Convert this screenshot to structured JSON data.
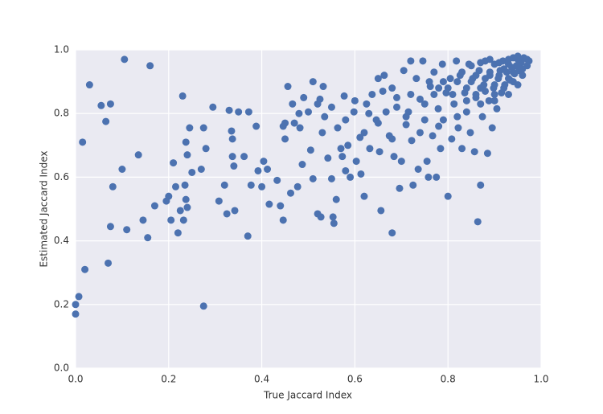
{
  "chart_data": {
    "type": "scatter",
    "xlabel": "True Jaccard Index",
    "ylabel": "Estimated Jaccard Index",
    "color": "#4c72b0",
    "grid": true,
    "xlim": [
      0,
      1
    ],
    "ylim": [
      0,
      1
    ],
    "xticks": [
      {
        "value": 0,
        "label": "0.0"
      },
      0.2,
      0.4,
      0.6,
      0.8,
      {
        "value": 1,
        "label": "1.0"
      }
    ],
    "yticks": [
      {
        "value": 0,
        "label": "0.0"
      },
      0.2,
      0.4,
      0.6,
      0.8,
      {
        "value": 1,
        "label": "1.0"
      }
    ],
    "x": [
      0.0,
      0.0,
      0.007,
      0.015,
      0.02,
      0.03,
      0.055,
      0.065,
      0.075,
      0.07,
      0.075,
      0.08,
      0.105,
      0.1,
      0.11,
      0.135,
      0.145,
      0.16,
      0.155,
      0.17,
      0.195,
      0.2,
      0.205,
      0.21,
      0.215,
      0.22,
      0.225,
      0.23,
      0.235,
      0.232,
      0.237,
      0.237,
      0.245,
      0.24,
      0.24,
      0.25,
      0.27,
      0.275,
      0.275,
      0.28,
      0.295,
      0.308,
      0.32,
      0.325,
      0.33,
      0.335,
      0.337,
      0.337,
      0.34,
      0.342,
      0.35,
      0.362,
      0.37,
      0.372,
      0.377,
      0.388,
      0.392,
      0.4,
      0.404,
      0.412,
      0.416,
      0.433,
      0.44,
      0.446,
      0.446,
      0.45,
      0.456,
      0.462,
      0.466,
      0.47,
      0.477,
      0.482,
      0.487,
      0.49,
      0.5,
      0.505,
      0.51,
      0.51,
      0.52,
      0.525,
      0.527,
      0.532,
      0.535,
      0.542,
      0.55,
      0.553,
      0.555,
      0.56,
      0.563,
      0.573,
      0.577,
      0.58,
      0.585,
      0.59,
      0.598,
      0.603,
      0.611,
      0.613,
      0.62,
      0.625,
      0.632,
      0.637,
      0.646,
      0.65,
      0.653,
      0.656,
      0.663,
      0.667,
      0.674,
      0.68,
      0.68,
      0.684,
      0.69,
      0.696,
      0.7,
      0.705,
      0.71,
      0.715,
      0.72,
      0.722,
      0.725,
      0.732,
      0.736,
      0.74,
      0.746,
      0.75,
      0.755,
      0.758,
      0.762,
      0.767,
      0.77,
      0.775,
      0.779,
      0.784,
      0.788,
      0.79,
      0.796,
      0.8,
      0.805,
      0.808,
      0.813,
      0.818,
      0.822,
      0.826,
      0.83,
      0.836,
      0.84,
      0.845,
      0.848,
      0.853,
      0.857,
      0.86,
      0.864,
      0.867,
      0.87,
      0.874,
      0.877,
      0.88,
      0.885,
      0.888,
      0.89,
      0.895,
      0.898,
      0.9,
      0.905,
      0.908,
      0.912,
      0.915,
      0.918,
      0.922,
      0.926,
      0.93,
      0.933,
      0.937,
      0.94,
      0.943,
      0.947,
      0.95,
      0.953,
      0.957,
      0.963,
      0.974,
      0.85,
      0.86,
      0.87,
      0.88,
      0.89,
      0.9,
      0.91,
      0.92,
      0.93,
      0.94,
      0.95,
      0.96,
      0.84,
      0.86,
      0.88,
      0.9,
      0.92,
      0.94,
      0.96,
      0.82,
      0.83,
      0.85,
      0.87,
      0.89,
      0.91,
      0.93,
      0.95,
      0.97,
      0.8,
      0.81,
      0.79,
      0.78,
      0.77,
      0.76,
      0.84,
      0.87,
      0.9,
      0.93,
      0.95,
      0.97,
      0.6,
      0.63,
      0.66,
      0.69,
      0.72,
      0.75,
      0.62,
      0.65,
      0.68,
      0.71,
      0.74,
      0.78,
      0.82,
      0.55,
      0.58,
      0.52,
      0.48,
      0.53,
      0.57,
      0.45
    ],
    "values": [
      0.17,
      0.2,
      0.225,
      0.71,
      0.31,
      0.89,
      0.825,
      0.775,
      0.83,
      0.33,
      0.445,
      0.57,
      0.97,
      0.625,
      0.435,
      0.67,
      0.465,
      0.95,
      0.41,
      0.51,
      0.525,
      0.54,
      0.465,
      0.645,
      0.57,
      0.425,
      0.495,
      0.855,
      0.575,
      0.465,
      0.53,
      0.71,
      0.755,
      0.67,
      0.505,
      0.615,
      0.625,
      0.755,
      0.195,
      0.69,
      0.82,
      0.525,
      0.575,
      0.485,
      0.81,
      0.745,
      0.72,
      0.665,
      0.635,
      0.495,
      0.805,
      0.665,
      0.415,
      0.805,
      0.575,
      0.76,
      0.62,
      0.57,
      0.65,
      0.625,
      0.515,
      0.59,
      0.51,
      0.465,
      0.76,
      0.72,
      0.885,
      0.55,
      0.83,
      0.77,
      0.57,
      0.755,
      0.64,
      0.85,
      0.805,
      0.685,
      0.9,
      0.595,
      0.485,
      0.845,
      0.475,
      0.885,
      0.79,
      0.66,
      0.595,
      0.475,
      0.455,
      0.53,
      0.755,
      0.665,
      0.855,
      0.62,
      0.7,
      0.6,
      0.805,
      0.65,
      0.725,
      0.61,
      0.54,
      0.83,
      0.69,
      0.86,
      0.78,
      0.91,
      0.68,
      0.495,
      0.92,
      0.805,
      0.73,
      0.88,
      0.425,
      0.665,
      0.85,
      0.565,
      0.65,
      0.935,
      0.765,
      0.805,
      0.965,
      0.715,
      0.575,
      0.91,
      0.625,
      0.845,
      0.965,
      0.78,
      0.65,
      0.6,
      0.885,
      0.73,
      0.93,
      0.6,
      0.815,
      0.69,
      0.955,
      0.78,
      0.865,
      0.54,
      0.91,
      0.72,
      0.83,
      0.965,
      0.755,
      0.92,
      0.69,
      0.865,
      0.805,
      0.955,
      0.74,
      0.91,
      0.68,
      0.85,
      0.46,
      0.935,
      0.575,
      0.79,
      0.89,
      0.965,
      0.675,
      0.84,
      0.92,
      0.755,
      0.88,
      0.955,
      0.815,
      0.91,
      0.935,
      0.865,
      0.965,
      0.89,
      0.93,
      0.955,
      0.905,
      0.945,
      0.975,
      0.925,
      0.95,
      0.98,
      0.935,
      0.96,
      0.975,
      0.965,
      0.9,
      0.92,
      0.88,
      0.91,
      0.93,
      0.89,
      0.92,
      0.94,
      0.91,
      0.93,
      0.95,
      0.94,
      0.88,
      0.86,
      0.87,
      0.86,
      0.88,
      0.9,
      0.92,
      0.9,
      0.93,
      0.95,
      0.96,
      0.97,
      0.96,
      0.97,
      0.97,
      0.97,
      0.88,
      0.86,
      0.9,
      0.88,
      0.86,
      0.9,
      0.84,
      0.83,
      0.84,
      0.86,
      0.89,
      0.95,
      0.84,
      0.8,
      0.87,
      0.82,
      0.86,
      0.83,
      0.74,
      0.77,
      0.72,
      0.79,
      0.74,
      0.76,
      0.79,
      0.82,
      0.78,
      0.83,
      0.8,
      0.74,
      0.69,
      0.77
    ]
  }
}
